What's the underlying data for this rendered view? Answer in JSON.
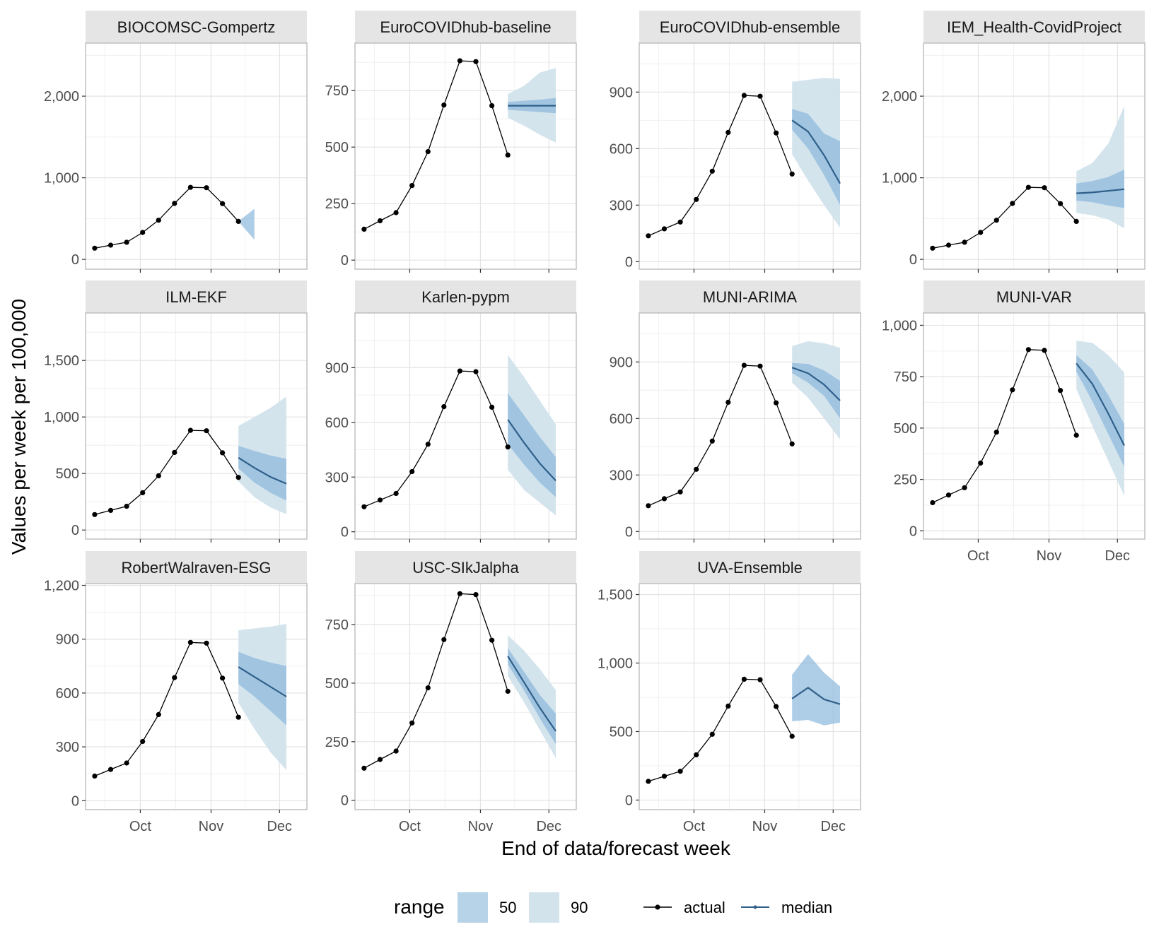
{
  "chart_data": {
    "type": "line",
    "xlabel": "End of data/forecast week",
    "ylabel": "Values per week per 100,000",
    "x_tick_labels": [
      "Oct",
      "Nov",
      "Dec"
    ],
    "actual_weeks": [
      "2021-09-11",
      "2021-09-18",
      "2021-09-25",
      "2021-10-02",
      "2021-10-09",
      "2021-10-16",
      "2021-10-23",
      "2021-10-30",
      "2021-11-06",
      "2021-11-13"
    ],
    "actual_values": [
      137,
      174,
      210,
      330,
      480,
      686,
      882,
      878,
      683,
      465
    ],
    "forecast_weeks": [
      "2021-11-13",
      "2021-11-20",
      "2021-11-27",
      "2021-12-04"
    ],
    "legend": {
      "title": "range",
      "items": [
        {
          "label": "50",
          "color": "#b6d3e8"
        },
        {
          "label": "90",
          "color": "#d2e3ec"
        },
        {
          "label": "actual",
          "color": "#000000"
        },
        {
          "label": "median",
          "color": "#2f5f8a"
        }
      ]
    },
    "colors": {
      "band50": "#8bb8dc",
      "band90": "#d2e3ec",
      "median": "#2f5f8a",
      "actual": "#000000",
      "strip": "#e5e5e5",
      "grid": "#e3e3e3",
      "border": "#bcbcbc"
    },
    "panels": [
      {
        "title": "BIOCOMSC-Gompertz",
        "ylim": [
          -120,
          2650
        ],
        "y_ticks": [
          0,
          1000,
          2000
        ],
        "y_tick_labels": [
          "0",
          "1,000",
          "2,000"
        ],
        "q5": [
          null,
          null,
          null,
          null
        ],
        "q25": [
          465,
          240,
          null,
          null
        ],
        "median": [
          null,
          null,
          null,
          null
        ],
        "q75": [
          465,
          620,
          null,
          null
        ],
        "q95": [
          null,
          null,
          null,
          null
        ]
      },
      {
        "title": "EuroCOVIDhub-baseline",
        "ylim": [
          -40,
          960
        ],
        "y_ticks": [
          0,
          250,
          500,
          750
        ],
        "y_tick_labels": [
          "0",
          "250",
          "500",
          "750"
        ],
        "q5": [
          630,
          595,
          555,
          520
        ],
        "q25": [
          665,
          660,
          655,
          650
        ],
        "median": [
          683,
          683,
          683,
          683
        ],
        "q75": [
          700,
          705,
          710,
          717
        ],
        "q95": [
          735,
          770,
          830,
          850
        ]
      },
      {
        "title": "EuroCOVIDhub-ensemble",
        "ylim": [
          -40,
          1160
        ],
        "y_ticks": [
          0,
          300,
          600,
          900
        ],
        "y_tick_labels": [
          "0",
          "300",
          "600",
          "900"
        ],
        "q5": [
          570,
          430,
          300,
          180
        ],
        "q25": [
          700,
          600,
          460,
          300
        ],
        "median": [
          750,
          690,
          565,
          415
        ],
        "q75": [
          810,
          785,
          680,
          640
        ],
        "q95": [
          955,
          965,
          975,
          970
        ]
      },
      {
        "title": "IEM_Health-CovidProject",
        "ylim": [
          -120,
          2650
        ],
        "y_ticks": [
          0,
          1000,
          2000
        ],
        "y_tick_labels": [
          "0",
          "1,000",
          "2,000"
        ],
        "q5": [
          570,
          540,
          490,
          380
        ],
        "q25": [
          720,
          700,
          660,
          630
        ],
        "median": [
          810,
          820,
          840,
          860
        ],
        "q75": [
          930,
          960,
          1010,
          1100
        ],
        "q95": [
          1080,
          1180,
          1420,
          1880
        ]
      },
      {
        "title": "ILM-EKF",
        "ylim": [
          -80,
          1920
        ],
        "y_ticks": [
          0,
          500,
          1000,
          1500
        ],
        "y_tick_labels": [
          "0",
          "500",
          "1,000",
          "1,500"
        ],
        "q5": [
          430,
          290,
          200,
          140
        ],
        "q25": [
          545,
          420,
          330,
          260
        ],
        "median": [
          640,
          550,
          470,
          410
        ],
        "q75": [
          745,
          700,
          660,
          630
        ],
        "q95": [
          920,
          1000,
          1080,
          1180
        ]
      },
      {
        "title": "Karlen-pypm",
        "ylim": [
          -40,
          1200
        ],
        "y_ticks": [
          0,
          300,
          600,
          900
        ],
        "y_tick_labels": [
          "0",
          "300",
          "600",
          "900"
        ],
        "q5": [
          340,
          230,
          160,
          90
        ],
        "q25": [
          480,
          370,
          270,
          190
        ],
        "median": [
          615,
          490,
          375,
          280
        ],
        "q75": [
          760,
          640,
          520,
          410
        ],
        "q95": [
          970,
          850,
          720,
          590
        ]
      },
      {
        "title": "MUNI-ARIMA",
        "ylim": [
          -40,
          1160
        ],
        "y_ticks": [
          0,
          300,
          600,
          900
        ],
        "y_tick_labels": [
          "0",
          "300",
          "600",
          "900"
        ],
        "q5": [
          790,
          710,
          600,
          490
        ],
        "q25": [
          840,
          790,
          720,
          600
        ],
        "median": [
          870,
          840,
          780,
          695
        ],
        "q75": [
          895,
          890,
          855,
          800
        ],
        "q95": [
          985,
          1010,
          1000,
          975
        ]
      },
      {
        "title": "MUNI-VAR",
        "ylim": [
          -40,
          1060
        ],
        "y_ticks": [
          0,
          250,
          500,
          750,
          1000
        ],
        "y_tick_labels": [
          "0",
          "250",
          "500",
          "750",
          "1,000"
        ],
        "q5": [
          690,
          510,
          340,
          170
        ],
        "q25": [
          775,
          630,
          470,
          310
        ],
        "median": [
          815,
          715,
          570,
          415
        ],
        "q75": [
          855,
          785,
          660,
          520
        ],
        "q95": [
          925,
          915,
          855,
          770
        ]
      },
      {
        "title": "RobertWalraven-ESG",
        "ylim": [
          -50,
          1210
        ],
        "y_ticks": [
          0,
          300,
          600,
          900,
          1200
        ],
        "y_tick_labels": [
          "0",
          "300",
          "600",
          "900",
          "1,200"
        ],
        "q5": [
          545,
          400,
          270,
          170
        ],
        "q25": [
          650,
          580,
          500,
          420
        ],
        "median": [
          745,
          690,
          635,
          580
        ],
        "q75": [
          830,
          795,
          770,
          750
        ],
        "q95": [
          950,
          960,
          970,
          985
        ]
      },
      {
        "title": "USC-SIkJalpha",
        "ylim": [
          -40,
          925
        ],
        "y_ticks": [
          0,
          250,
          500,
          750
        ],
        "y_tick_labels": [
          "0",
          "250",
          "500",
          "750"
        ],
        "q5": [
          530,
          420,
          300,
          180
        ],
        "q25": [
          580,
          470,
          350,
          240
        ],
        "median": [
          615,
          505,
          395,
          295
        ],
        "q75": [
          650,
          550,
          450,
          370
        ],
        "q95": [
          705,
          640,
          560,
          470
        ]
      },
      {
        "title": "UVA-Ensemble",
        "ylim": [
          -70,
          1580
        ],
        "y_ticks": [
          0,
          500,
          1000,
          1500
        ],
        "y_tick_labels": [
          "0",
          "500",
          "1,000",
          "1,500"
        ],
        "q5": [
          null,
          null,
          null,
          null
        ],
        "q25": [
          575,
          585,
          545,
          565
        ],
        "median": [
          740,
          820,
          735,
          700
        ],
        "q75": [
          915,
          1065,
          930,
          830
        ],
        "q95": [
          null,
          null,
          null,
          null
        ]
      }
    ]
  }
}
